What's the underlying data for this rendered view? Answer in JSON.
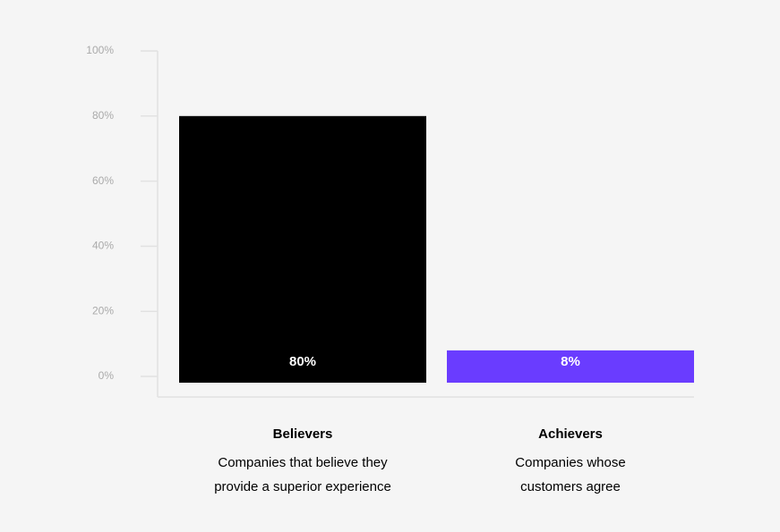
{
  "chart_data": {
    "type": "bar",
    "categories": [
      "Believers",
      "Achievers"
    ],
    "descriptions": [
      [
        "Companies that believe they",
        "provide a superior experience"
      ],
      [
        "Companies whose",
        "customers agree"
      ]
    ],
    "values": [
      80,
      8
    ],
    "value_labels": [
      "80%",
      "8%"
    ],
    "colors": [
      "#000000",
      "#6a3cff"
    ],
    "ylim": [
      0,
      100
    ],
    "yticks": [
      {
        "value": 0,
        "label": "0%"
      },
      {
        "value": 20,
        "label": "20%"
      },
      {
        "value": 40,
        "label": "40%"
      },
      {
        "value": 60,
        "label": "60%"
      },
      {
        "value": 80,
        "label": "80%"
      },
      {
        "value": 100,
        "label": "100%"
      }
    ]
  }
}
